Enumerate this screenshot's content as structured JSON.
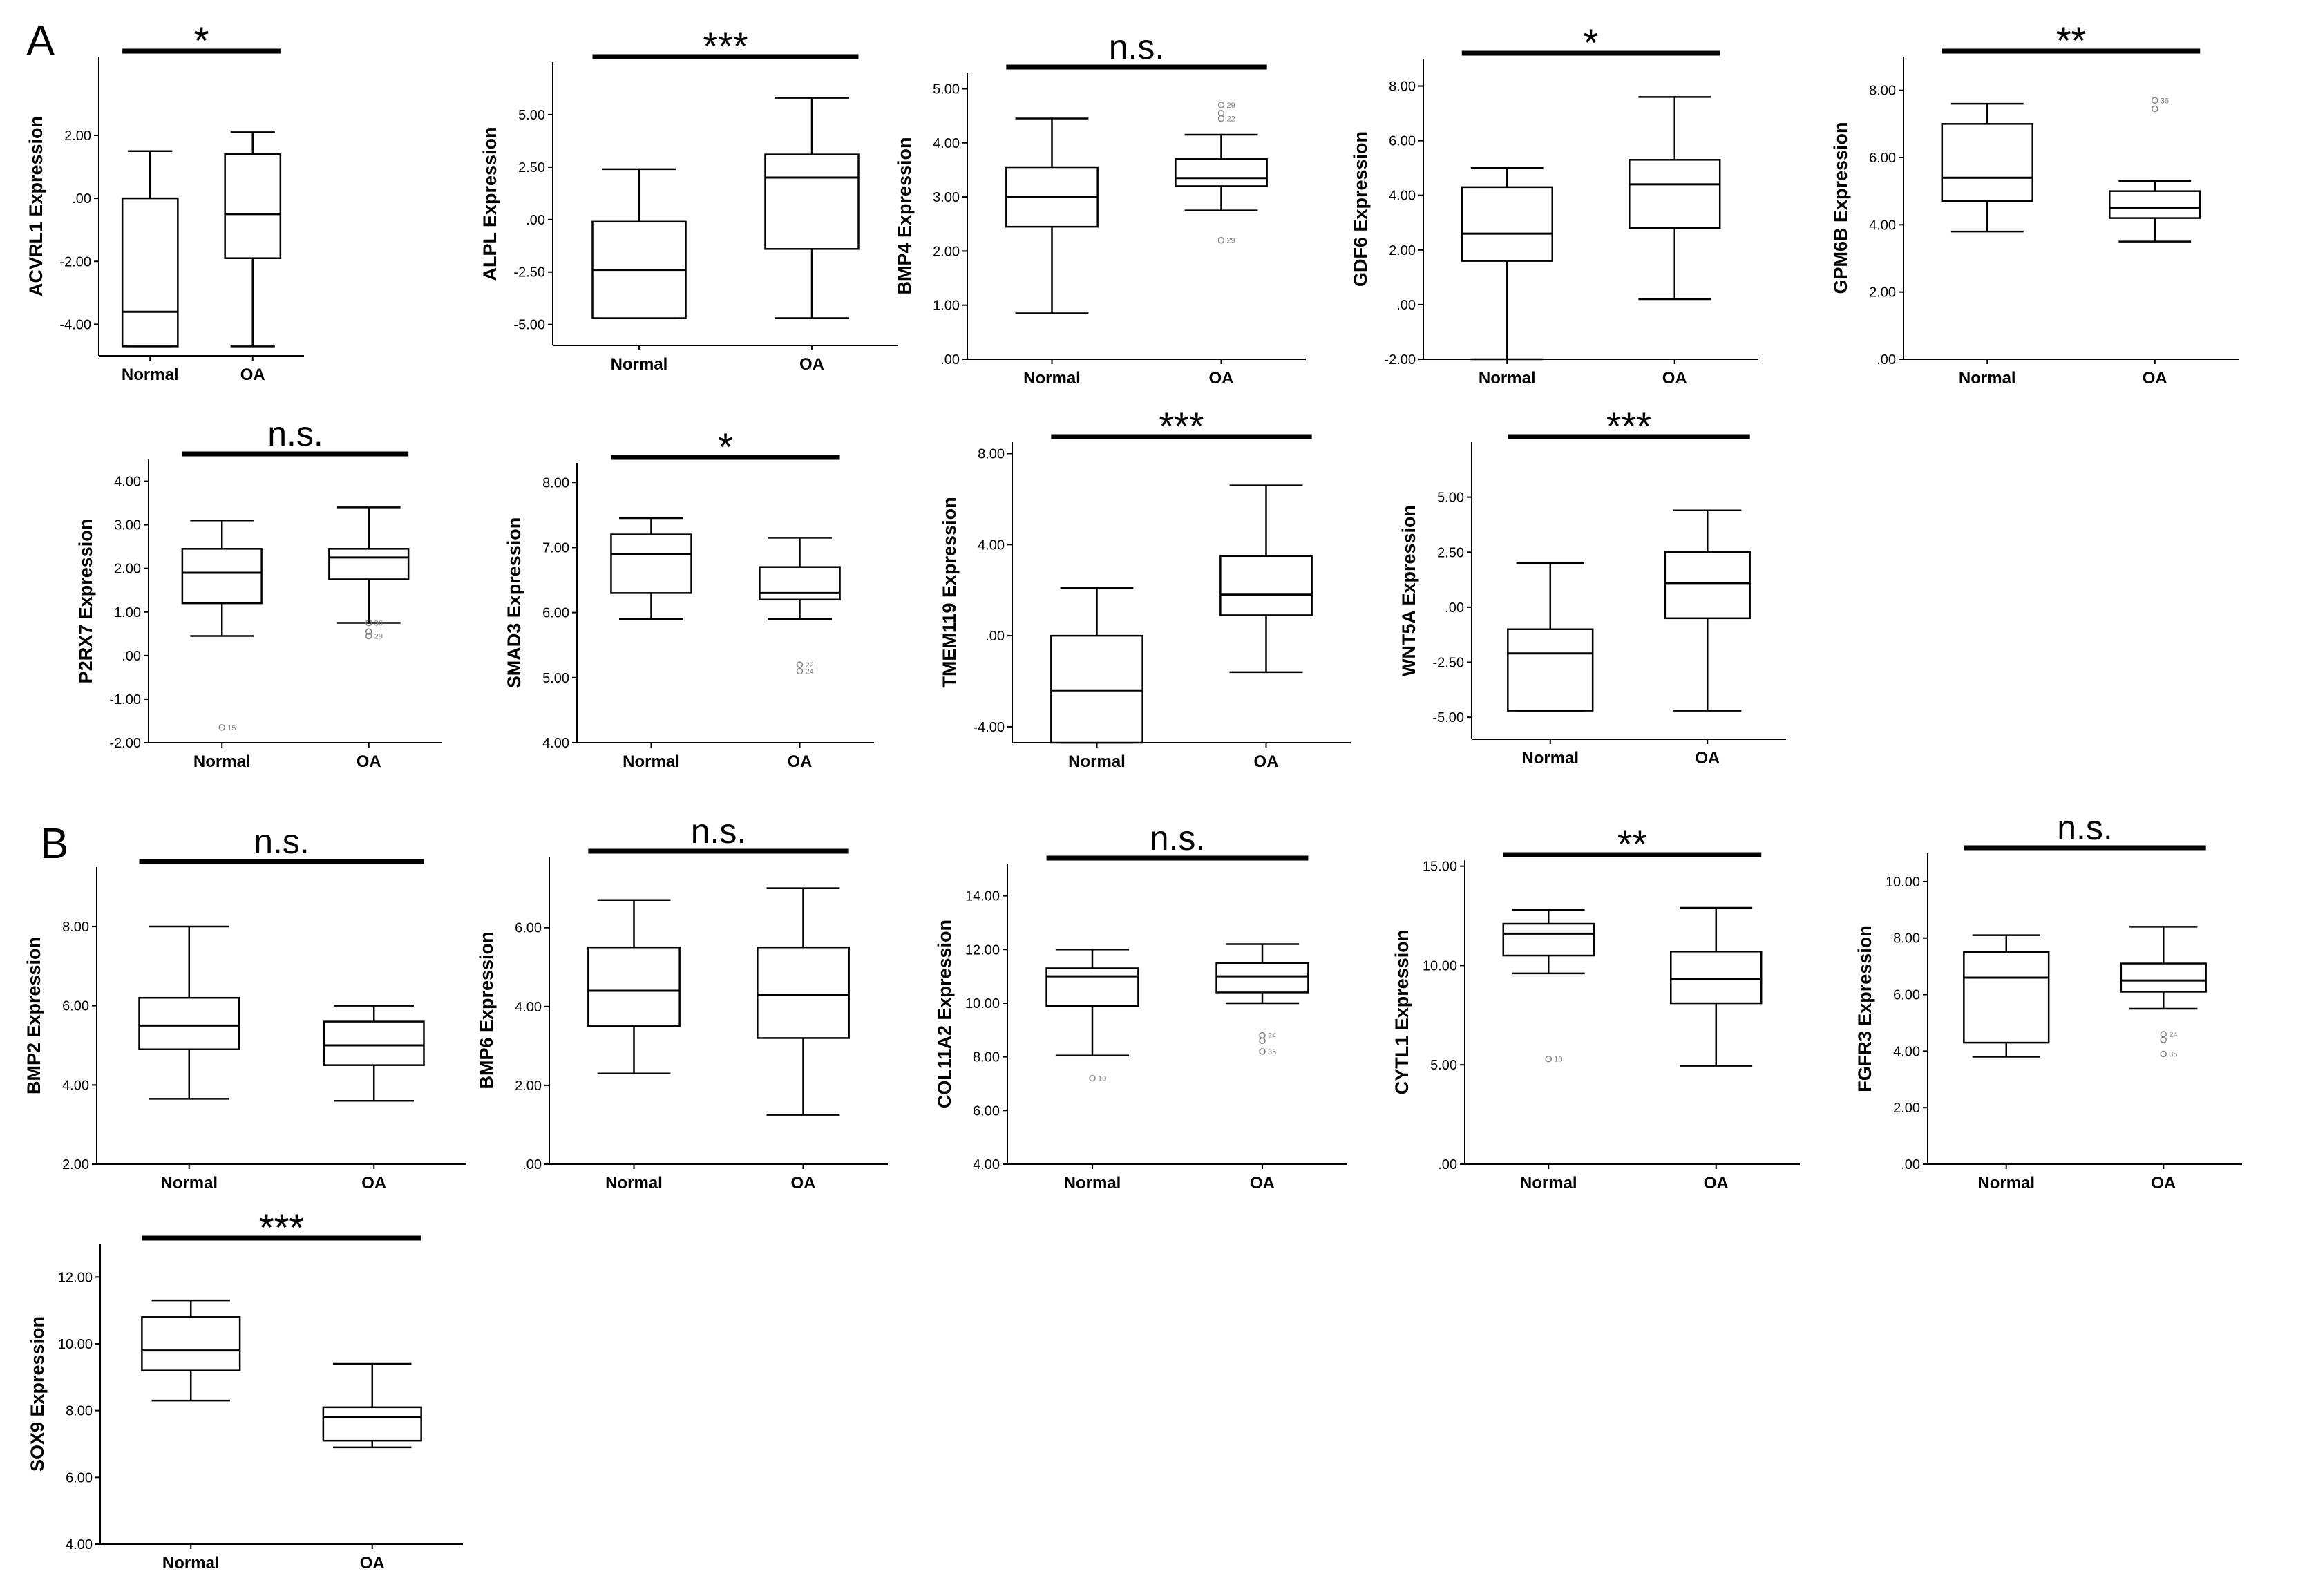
{
  "panel_labels": {
    "a": "A",
    "b": "B"
  },
  "colors": {
    "ink": "#000000",
    "outlier": "#808080",
    "background": "#ffffff"
  },
  "chart_data": [
    {
      "panel": "A",
      "type": "box",
      "ylabel": "ACVRL1 Expression",
      "categories": [
        "Normal",
        "OA"
      ],
      "ylim": [
        -5,
        4.5
      ],
      "yticks": [
        -4,
        -2,
        0,
        2
      ],
      "tick_labels": [
        "-4.00",
        "-2.00",
        ".00",
        "2.00"
      ],
      "significance": "*",
      "boxes": [
        {
          "min": -4.7,
          "q1": -4.7,
          "median": -3.6,
          "q3": 0.0,
          "max": 1.5,
          "outliers": []
        },
        {
          "min": -4.7,
          "q1": -1.9,
          "median": -0.5,
          "q3": 1.4,
          "max": 2.1,
          "outliers": []
        }
      ]
    },
    {
      "panel": "A",
      "type": "box",
      "ylabel": "ALPL Expression",
      "categories": [
        "Normal",
        "OA"
      ],
      "ylim": [
        -6,
        7.5
      ],
      "yticks": [
        -5,
        -2.5,
        0,
        2.5,
        5
      ],
      "tick_labels": [
        "-5.00",
        "-2.50",
        ".00",
        "2.50",
        "5.00"
      ],
      "significance": "***",
      "boxes": [
        {
          "min": -4.7,
          "q1": -4.7,
          "median": -2.4,
          "q3": -0.1,
          "max": 2.4,
          "outliers": []
        },
        {
          "min": -4.7,
          "q1": -1.4,
          "median": 2.0,
          "q3": 3.1,
          "max": 5.8,
          "outliers": []
        }
      ]
    },
    {
      "panel": "A",
      "type": "box",
      "ylabel": "BMP4 Expression",
      "categories": [
        "Normal",
        "OA"
      ],
      "ylim": [
        0,
        5.3
      ],
      "yticks": [
        0,
        1,
        2,
        3,
        4,
        5
      ],
      "tick_labels": [
        ".00",
        "1.00",
        "2.00",
        "3.00",
        "4.00",
        "5.00"
      ],
      "significance": "n.s.",
      "boxes": [
        {
          "min": 0.85,
          "q1": 2.45,
          "median": 3.0,
          "q3": 3.55,
          "max": 4.45,
          "outliers": []
        },
        {
          "min": 2.75,
          "q1": 3.2,
          "median": 3.35,
          "q3": 3.7,
          "max": 4.15,
          "outliers": [
            {
              "value": 4.7,
              "label": "29"
            },
            {
              "value": 4.55,
              "label": ""
            },
            {
              "value": 4.45,
              "label": "22"
            },
            {
              "value": 2.2,
              "label": "29"
            }
          ]
        }
      ]
    },
    {
      "panel": "A",
      "type": "box",
      "ylabel": "GDF6 Expression",
      "categories": [
        "Normal",
        "OA"
      ],
      "ylim": [
        -2,
        9
      ],
      "yticks": [
        -2,
        0,
        2,
        4,
        6,
        8
      ],
      "tick_labels": [
        "-2.00",
        ".00",
        "2.00",
        "4.00",
        "6.00",
        "8.00"
      ],
      "significance": "*",
      "boxes": [
        {
          "min": -2.0,
          "q1": 1.6,
          "median": 2.6,
          "q3": 4.3,
          "max": 5.0,
          "outliers": []
        },
        {
          "min": 0.2,
          "q1": 2.8,
          "median": 4.4,
          "q3": 5.3,
          "max": 7.6,
          "outliers": []
        }
      ]
    },
    {
      "panel": "A",
      "type": "box",
      "ylabel": "GPM6B Expression",
      "categories": [
        "Normal",
        "OA"
      ],
      "ylim": [
        0,
        9
      ],
      "yticks": [
        0,
        2,
        4,
        6,
        8
      ],
      "tick_labels": [
        ".00",
        "2.00",
        "4.00",
        "6.00",
        "8.00"
      ],
      "significance": "**",
      "boxes": [
        {
          "min": 3.8,
          "q1": 4.7,
          "median": 5.4,
          "q3": 7.0,
          "max": 7.6,
          "outliers": []
        },
        {
          "min": 3.5,
          "q1": 4.2,
          "median": 4.5,
          "q3": 5.0,
          "max": 5.3,
          "outliers": [
            {
              "value": 7.45,
              "label": ""
            },
            {
              "value": 7.7,
              "label": "36"
            }
          ]
        }
      ]
    },
    {
      "panel": "A",
      "type": "box",
      "ylabel": "P2RX7 Expression",
      "categories": [
        "Normal",
        "OA"
      ],
      "ylim": [
        -2,
        4.5
      ],
      "yticks": [
        -2,
        -1,
        0,
        1,
        2,
        3,
        4
      ],
      "tick_labels": [
        "-2.00",
        "-1.00",
        ".00",
        "1.00",
        "2.00",
        "3.00",
        "4.00"
      ],
      "significance": "n.s.",
      "boxes": [
        {
          "min": 0.45,
          "q1": 1.2,
          "median": 1.9,
          "q3": 2.45,
          "max": 3.1,
          "outliers": [
            {
              "value": -1.65,
              "label": "15"
            }
          ]
        },
        {
          "min": 0.75,
          "q1": 1.75,
          "median": 2.25,
          "q3": 2.45,
          "max": 3.4,
          "outliers": [
            {
              "value": 0.55,
              "label": ""
            },
            {
              "value": 0.45,
              "label": "29"
            },
            {
              "value": 0.75,
              "label": "36"
            }
          ]
        }
      ]
    },
    {
      "panel": "A",
      "type": "box",
      "ylabel": "SMAD3 Expression",
      "categories": [
        "Normal",
        "OA"
      ],
      "ylim": [
        4,
        8.3
      ],
      "yticks": [
        4,
        5,
        6,
        7,
        8
      ],
      "tick_labels": [
        "4.00",
        "5.00",
        "6.00",
        "7.00",
        "8.00"
      ],
      "significance": "*",
      "boxes": [
        {
          "min": 5.9,
          "q1": 6.3,
          "median": 6.9,
          "q3": 7.2,
          "max": 7.45,
          "outliers": []
        },
        {
          "min": 5.9,
          "q1": 6.2,
          "median": 6.3,
          "q3": 6.7,
          "max": 7.15,
          "outliers": [
            {
              "value": 5.2,
              "label": "22"
            },
            {
              "value": 5.1,
              "label": "24"
            }
          ]
        }
      ]
    },
    {
      "panel": "A",
      "type": "box",
      "ylabel": "TMEM119 Expression",
      "categories": [
        "Normal",
        "OA"
      ],
      "ylim": [
        -4.7,
        8.5
      ],
      "yticks": [
        -4,
        0,
        4,
        8
      ],
      "tick_labels": [
        "-4.00",
        ".00",
        "4.00",
        "8.00"
      ],
      "significance": "***",
      "boxes": [
        {
          "min": -4.7,
          "q1": -4.7,
          "median": -2.4,
          "q3": 0.0,
          "max": 2.1,
          "outliers": []
        },
        {
          "min": -1.6,
          "q1": 0.9,
          "median": 1.8,
          "q3": 3.5,
          "max": 6.6,
          "outliers": []
        }
      ]
    },
    {
      "panel": "A",
      "type": "box",
      "ylabel": "WNT5A Expression",
      "categories": [
        "Normal",
        "OA"
      ],
      "ylim": [
        -6,
        7.5
      ],
      "yticks": [
        -5,
        -2.5,
        0,
        2.5,
        5
      ],
      "tick_labels": [
        "-5.00",
        "-2.50",
        ".00",
        "2.50",
        "5.00"
      ],
      "significance": "***",
      "boxes": [
        {
          "min": -4.7,
          "q1": -4.7,
          "median": -2.1,
          "q3": -1.0,
          "max": 2.0,
          "outliers": []
        },
        {
          "min": -4.7,
          "q1": -0.5,
          "median": 1.1,
          "q3": 2.5,
          "max": 4.4,
          "outliers": []
        }
      ]
    },
    {
      "panel": "B",
      "type": "box",
      "ylabel": "BMP2 Expression",
      "categories": [
        "Normal",
        "OA"
      ],
      "ylim": [
        2,
        9.5
      ],
      "yticks": [
        2,
        4,
        6,
        8
      ],
      "tick_labels": [
        "2.00",
        "4.00",
        "6.00",
        "8.00"
      ],
      "significance": "n.s.",
      "boxes": [
        {
          "min": 3.65,
          "q1": 4.9,
          "median": 5.5,
          "q3": 6.2,
          "max": 8.0,
          "outliers": []
        },
        {
          "min": 3.6,
          "q1": 4.5,
          "median": 5.0,
          "q3": 5.6,
          "max": 6.0,
          "outliers": []
        }
      ]
    },
    {
      "panel": "B",
      "type": "box",
      "ylabel": "BMP6 Expression",
      "categories": [
        "Normal",
        "OA"
      ],
      "ylim": [
        0,
        7.8
      ],
      "yticks": [
        0,
        2,
        4,
        6
      ],
      "tick_labels": [
        ".00",
        "2.00",
        "4.00",
        "6.00"
      ],
      "significance": "n.s.",
      "boxes": [
        {
          "min": 2.3,
          "q1": 3.5,
          "median": 4.4,
          "q3": 5.5,
          "max": 6.7,
          "outliers": []
        },
        {
          "min": 1.25,
          "q1": 3.2,
          "median": 4.3,
          "q3": 5.5,
          "max": 7.0,
          "outliers": []
        }
      ]
    },
    {
      "panel": "B",
      "type": "box",
      "ylabel": "COL11A2 Expression",
      "categories": [
        "Normal",
        "OA"
      ],
      "ylim": [
        4,
        15.2
      ],
      "yticks": [
        4,
        6,
        8,
        10,
        12,
        14
      ],
      "tick_labels": [
        "4.00",
        "6.00",
        "8.00",
        "10.00",
        "12.00",
        "14.00"
      ],
      "significance": "n.s.",
      "boxes": [
        {
          "min": 8.05,
          "q1": 9.9,
          "median": 11.0,
          "q3": 11.3,
          "max": 12.0,
          "outliers": [
            {
              "value": 7.2,
              "label": "10"
            }
          ]
        },
        {
          "min": 10.0,
          "q1": 10.4,
          "median": 11.0,
          "q3": 11.5,
          "max": 12.2,
          "outliers": [
            {
              "value": 8.8,
              "label": "24"
            },
            {
              "value": 8.6,
              "label": ""
            },
            {
              "value": 8.2,
              "label": "35"
            }
          ]
        }
      ]
    },
    {
      "panel": "B",
      "type": "box",
      "ylabel": "CYTL1 Expression",
      "categories": [
        "Normal",
        "OA"
      ],
      "ylim": [
        0,
        15.3
      ],
      "yticks": [
        0,
        5,
        10,
        15
      ],
      "tick_labels": [
        ".00",
        "5.00",
        "10.00",
        "15.00"
      ],
      "significance": "**",
      "boxes": [
        {
          "min": 9.6,
          "q1": 10.5,
          "median": 11.6,
          "q3": 12.1,
          "max": 12.8,
          "outliers": [
            {
              "value": 5.3,
              "label": "10"
            }
          ]
        },
        {
          "min": 4.95,
          "q1": 8.1,
          "median": 9.3,
          "q3": 10.7,
          "max": 12.9,
          "outliers": []
        }
      ]
    },
    {
      "panel": "B",
      "type": "box",
      "ylabel": "FGFR3 Expression",
      "categories": [
        "Normal",
        "OA"
      ],
      "ylim": [
        0,
        11
      ],
      "yticks": [
        0,
        2,
        4,
        6,
        8,
        10
      ],
      "tick_labels": [
        ".00",
        "2.00",
        "4.00",
        "6.00",
        "8.00",
        "10.00"
      ],
      "significance": "n.s.",
      "boxes": [
        {
          "min": 3.8,
          "q1": 4.3,
          "median": 6.6,
          "q3": 7.5,
          "max": 8.1,
          "outliers": []
        },
        {
          "min": 5.5,
          "q1": 6.1,
          "median": 6.5,
          "q3": 7.1,
          "max": 8.4,
          "outliers": [
            {
              "value": 4.6,
              "label": "24"
            },
            {
              "value": 4.4,
              "label": ""
            },
            {
              "value": 3.9,
              "label": "35"
            }
          ]
        }
      ]
    },
    {
      "panel": "B",
      "type": "box",
      "ylabel": "SOX9 Expression",
      "categories": [
        "Normal",
        "OA"
      ],
      "ylim": [
        4,
        13
      ],
      "yticks": [
        4,
        6,
        8,
        10,
        12
      ],
      "tick_labels": [
        "4.00",
        "6.00",
        "8.00",
        "10.00",
        "12.00"
      ],
      "significance": "***",
      "boxes": [
        {
          "min": 8.3,
          "q1": 9.2,
          "median": 9.8,
          "q3": 10.8,
          "max": 11.3,
          "outliers": []
        },
        {
          "min": 6.9,
          "q1": 7.1,
          "median": 7.8,
          "q3": 8.1,
          "max": 9.4,
          "outliers": []
        }
      ]
    }
  ]
}
